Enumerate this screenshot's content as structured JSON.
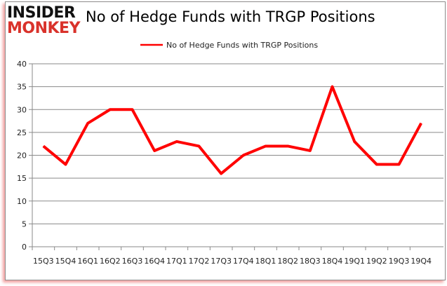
{
  "logo": {
    "line1": "INSIDER",
    "line2": "MONKEY"
  },
  "chart_data": {
    "type": "line",
    "title": "No of Hedge Funds with TRGP Positions",
    "xlabel": "",
    "ylabel": "",
    "categories": [
      "15Q3",
      "15Q4",
      "16Q1",
      "16Q2",
      "16Q3",
      "16Q4",
      "17Q1",
      "17Q2",
      "17Q3",
      "17Q4",
      "18Q1",
      "18Q2",
      "18Q3",
      "18Q4",
      "19Q1",
      "19Q2",
      "19Q3",
      "19Q4"
    ],
    "series": [
      {
        "name": "No of Hedge Funds with TRGP Positions",
        "color": "#ff0000",
        "values": [
          22,
          18,
          27,
          30,
          30,
          21,
          23,
          22,
          16,
          20,
          22,
          22,
          21,
          35,
          23,
          18,
          18,
          27
        ]
      }
    ],
    "ylim": [
      0,
      40
    ],
    "yticks": [
      0,
      5,
      10,
      15,
      20,
      25,
      30,
      35,
      40
    ],
    "grid": true,
    "legend": "top-center"
  }
}
